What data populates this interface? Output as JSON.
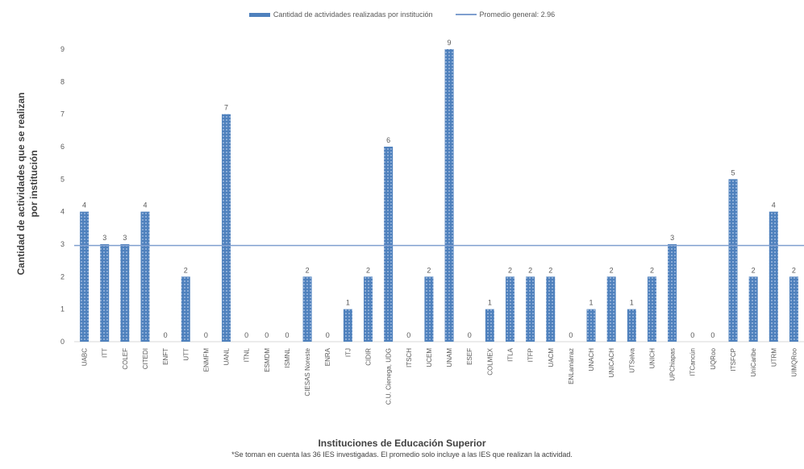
{
  "chart_data": {
    "type": "bar",
    "title": "",
    "xlabel": "Instituciones de Educación Superior",
    "ylabel": "Cantidad de actividades que se realizan por institución",
    "ylim": [
      0,
      9
    ],
    "yticks": [
      0,
      1,
      2,
      3,
      4,
      5,
      6,
      7,
      8,
      9
    ],
    "grid": false,
    "legend_position": "top",
    "bar_color": "#4f81bd",
    "line_color": "#7f9fcf",
    "categories": [
      "UABC",
      "ITT",
      "COLEF",
      "CITEDI",
      "ENFT",
      "UTT",
      "ENMFM",
      "UANL",
      "ITNL",
      "ESMDM",
      "ISMNL",
      "CIESAS Noreste",
      "ENRA",
      "ITJ",
      "CIDIR",
      "C.U. Cienega, UDG",
      "ITSCH",
      "UCEM",
      "UNAM",
      "ESEF",
      "COLMEX",
      "ITLA",
      "ITFP",
      "UACM",
      "ENLamárraz",
      "UNACH",
      "UNICACH",
      "UTSelva",
      "UNICH",
      "UPChiapas",
      "ITCancún",
      "UQRoo",
      "ITSFCP",
      "UniCaribe",
      "UTRM",
      "UIMQRoo"
    ],
    "series": [
      {
        "name": "Cantidad de actividades realizadas por institución",
        "values": [
          4,
          3,
          3,
          4,
          0,
          2,
          0,
          7,
          0,
          0,
          0,
          2,
          0,
          1,
          2,
          6,
          0,
          2,
          9,
          0,
          1,
          2,
          2,
          2,
          0,
          1,
          2,
          1,
          2,
          3,
          0,
          0,
          5,
          2,
          4,
          2
        ]
      }
    ],
    "reference_line": {
      "name": "Promedio general: 2.96",
      "value": 2.96
    }
  },
  "footnote": "*Se toman en cuenta las 36 IES investigadas. El promedio solo incluye a las IES que realizan la actividad."
}
